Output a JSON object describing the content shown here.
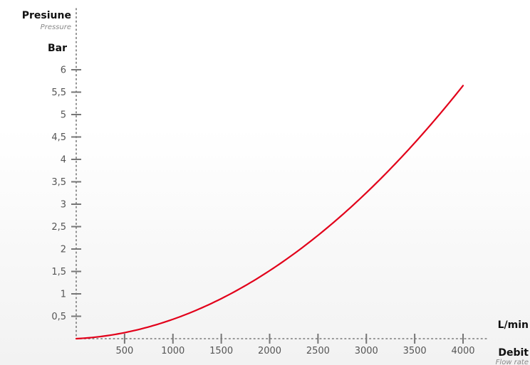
{
  "chart_data": {
    "type": "line",
    "y_title": "Presiune",
    "y_subtitle": "Pressure",
    "y_unit": "Bar",
    "x_title": "Debit",
    "x_subtitle": "Flow rate",
    "x_unit": "L/min",
    "xlim": [
      0,
      4000
    ],
    "ylim": [
      0,
      6
    ],
    "x_ticks": [
      500,
      1000,
      1500,
      2000,
      2500,
      3000,
      3500,
      4000
    ],
    "y_ticks": [
      {
        "value": 0.5,
        "label": "0,5"
      },
      {
        "value": 1,
        "label": "1"
      },
      {
        "value": 1.5,
        "label": "1,5"
      },
      {
        "value": 2,
        "label": "2"
      },
      {
        "value": 2.5,
        "label": "2,5"
      },
      {
        "value": 3,
        "label": "3"
      },
      {
        "value": 3.5,
        "label": "3,5"
      },
      {
        "value": 4,
        "label": "4"
      },
      {
        "value": 4.5,
        "label": "4,5"
      },
      {
        "value": 5,
        "label": "5"
      },
      {
        "value": 5.5,
        "label": "5,5"
      },
      {
        "value": 6,
        "label": "6"
      }
    ],
    "series": [
      {
        "color": "#e2001a",
        "x": [
          0,
          500,
          1000,
          1500,
          2000,
          2500,
          3000,
          3500,
          4000
        ],
        "y": [
          0.0,
          0.11,
          0.41,
          0.88,
          1.52,
          2.32,
          3.28,
          4.38,
          5.62
        ]
      }
    ]
  }
}
